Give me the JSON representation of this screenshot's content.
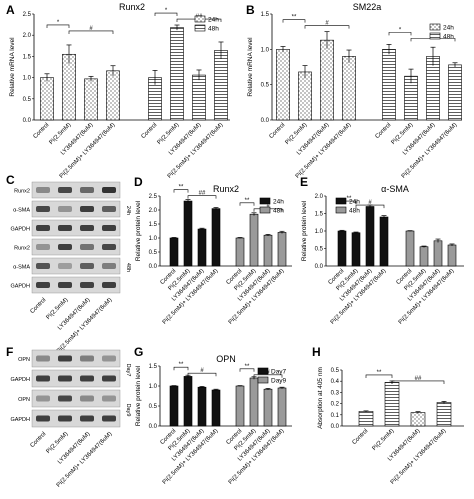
{
  "panel_letters": [
    "A",
    "B",
    "C",
    "D",
    "E",
    "F",
    "G",
    "H"
  ],
  "blot_C": {
    "rows": [
      "Runx2",
      "α-SMA",
      "GAPDH",
      "Runx2",
      "α-SMA",
      "GAPDH"
    ],
    "group_labels": [
      "24h",
      "48h"
    ],
    "lanes": [
      "Control",
      "Pi(2.5mM)",
      "LY364947(6uM)",
      "Pi(2.5mM)+ LY364947(6uM)"
    ]
  },
  "blot_F": {
    "rows": [
      "OPN",
      "GAPDH",
      "OPN",
      "GAPDH"
    ],
    "group_labels": [
      "Day7",
      "Day9"
    ],
    "lanes": [
      "Control",
      "Pi(2.5mM)",
      "LY364947(6uM)",
      "Pi(2.5mM)+ LY364947(6uM)"
    ]
  },
  "chart_data": [
    {
      "id": "A",
      "type": "bar",
      "title": "Runx2",
      "ylabel": "Relative mRNA level",
      "ylim": [
        0,
        2.5
      ],
      "yticks": [
        0,
        0.5,
        1.0,
        1.5,
        2.0,
        2.5
      ],
      "yticklabels": [
        "0.0",
        "0.5",
        "1.0",
        "1.5",
        "2.0",
        "2.5"
      ],
      "categories": [
        "Control",
        "Pi(2.5mM)",
        "LY364947(6uM)",
        "Pi(2.5mM)+ LY364947(6uM)"
      ],
      "series": [
        {
          "name": "24h",
          "values": [
            1.0,
            1.55,
            0.97,
            1.16
          ],
          "errors": [
            0.09,
            0.22,
            0.06,
            0.12
          ],
          "fill": "#ffffff",
          "pattern": "dots"
        },
        {
          "name": "48h",
          "values": [
            1.0,
            2.18,
            1.06,
            1.64
          ],
          "errors": [
            0.17,
            0.06,
            0.12,
            0.2
          ],
          "fill": "#ffffff",
          "pattern": "hlines"
        }
      ],
      "legend": "top-right",
      "significance": [
        "*",
        "#",
        "*",
        "##"
      ]
    },
    {
      "id": "B",
      "type": "bar",
      "title": "SM22a",
      "ylabel": "Relative mRNA level",
      "ylim": [
        0,
        1.5
      ],
      "yticks": [
        0,
        0.5,
        1.0,
        1.5
      ],
      "yticklabels": [
        "0.0",
        "0.5",
        "1.0",
        "1.5"
      ],
      "categories": [
        "Control",
        "Pi(2.5mM)",
        "LY364947(6uM)",
        "Pi(2.5mM)+ LY364947(6uM)"
      ],
      "series": [
        {
          "name": "24h",
          "values": [
            1.0,
            0.68,
            1.13,
            0.9
          ],
          "errors": [
            0.04,
            0.09,
            0.12,
            0.09
          ],
          "fill": "#ffffff",
          "pattern": "dots"
        },
        {
          "name": "48h",
          "values": [
            1.0,
            0.62,
            0.9,
            0.78
          ],
          "errors": [
            0.07,
            0.1,
            0.13,
            0.03
          ],
          "fill": "#ffffff",
          "pattern": "hlines"
        }
      ],
      "legend": "top-right",
      "significance": [
        "**",
        "#",
        "*",
        "#"
      ]
    },
    {
      "id": "D",
      "type": "bar",
      "title": "Runx2",
      "ylabel": "Relative protein level",
      "ylim": [
        0,
        2.5
      ],
      "yticks": [
        0,
        0.5,
        1.0,
        1.5,
        2.0,
        2.5
      ],
      "yticklabels": [
        "0.0",
        "0.5",
        "1.0",
        "1.5",
        "2.0",
        "2.5"
      ],
      "categories": [
        "Control",
        "Pi(2.5mM)",
        "LY364947(6uM)",
        "Pi(2.5mM)+ LY364947(6uM)"
      ],
      "series": [
        {
          "name": "24h",
          "values": [
            1.0,
            2.32,
            1.32,
            2.05
          ],
          "errors": [
            0.02,
            0.05,
            0.03,
            0.04
          ],
          "fill": "#111111",
          "pattern": "solid"
        },
        {
          "name": "48h",
          "values": [
            1.0,
            1.85,
            1.1,
            1.2
          ],
          "errors": [
            0.02,
            0.05,
            0.03,
            0.04
          ],
          "fill": "#9a9a9a",
          "pattern": "solid"
        }
      ],
      "legend": "top-right",
      "significance": [
        "**",
        "##",
        "**",
        "#"
      ]
    },
    {
      "id": "E",
      "type": "bar",
      "title": "α-SMA",
      "ylabel": "Relative protein level",
      "ylim": [
        0,
        2.0
      ],
      "yticks": [
        0,
        0.5,
        1.0,
        1.5,
        2.0
      ],
      "yticklabels": [
        "0.0",
        "0.5",
        "1.0",
        "1.5",
        "2.0"
      ],
      "categories": [
        "Control",
        "Pi(2.5mM)",
        "LY364947(6uM)",
        "Pi(2.5mM)+ LY364947(6uM)"
      ],
      "series": [
        {
          "name": "24h",
          "values": [
            1.0,
            0.95,
            1.7,
            1.4
          ],
          "errors": [
            0.02,
            0.02,
            0.04,
            0.04
          ],
          "fill": "#111111",
          "pattern": "solid"
        },
        {
          "name": "48h",
          "values": [
            1.0,
            0.55,
            0.72,
            0.6
          ],
          "errors": [
            0.01,
            0.02,
            0.05,
            0.03
          ],
          "fill": "#9a9a9a",
          "pattern": "solid"
        }
      ],
      "legend": "top-left",
      "significance": [
        "**",
        "#"
      ]
    },
    {
      "id": "G",
      "type": "bar",
      "title": "OPN",
      "ylabel": "Relative protein level",
      "ylim": [
        0,
        1.5
      ],
      "yticks": [
        0,
        0.5,
        1.0,
        1.5
      ],
      "yticklabels": [
        "0.0",
        "0.5",
        "1.0",
        "1.5"
      ],
      "categories": [
        "Control",
        "Pi(2.5mM)",
        "LY364947(6uM)",
        "Pi(2.5mM)+ LY364947(6uM)"
      ],
      "series": [
        {
          "name": "Day7",
          "values": [
            1.0,
            1.24,
            0.97,
            0.9
          ],
          "errors": [
            0.01,
            0.03,
            0.02,
            0.02
          ],
          "fill": "#111111",
          "pattern": "solid"
        },
        {
          "name": "Day9",
          "values": [
            1.0,
            1.2,
            0.92,
            0.95
          ],
          "errors": [
            0.01,
            0.03,
            0.02,
            0.02
          ],
          "fill": "#9a9a9a",
          "pattern": "solid"
        }
      ],
      "legend": "top-right",
      "significance": [
        "**",
        "#",
        "**",
        "#"
      ]
    },
    {
      "id": "H",
      "type": "bar",
      "title": "",
      "ylabel": "Absorption at 405 nm",
      "ylim": [
        0,
        0.5
      ],
      "yticks": [
        0,
        0.1,
        0.2,
        0.3,
        0.4,
        0.5
      ],
      "yticklabels": [
        "0.0",
        "0.1",
        "0.2",
        "0.3",
        "0.4",
        "0.5"
      ],
      "categories": [
        "Control",
        "Pi(2.5mM)",
        "LY364947(6uM)",
        "Pi(2.5mM)+ LY364947(6uM)"
      ],
      "series": [
        {
          "name": "",
          "values": [
            0.13,
            0.39,
            0.12,
            0.21
          ],
          "errors": [
            0.005,
            0.012,
            0.008,
            0.01
          ],
          "fills": [
            "#ffffff",
            "#ffffff",
            "#ffffff",
            "#ffffff"
          ],
          "patterns": [
            "hlines",
            "hlines",
            "dots",
            "hlines"
          ]
        }
      ],
      "legend": "none",
      "significance": [
        "**",
        "##"
      ]
    }
  ]
}
